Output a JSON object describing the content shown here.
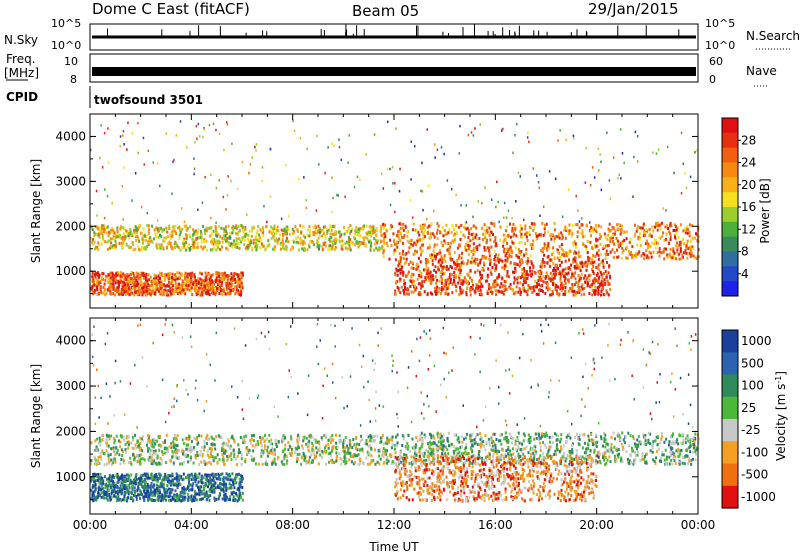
{
  "header": {
    "title": "Dome C East (fitACF)",
    "beam": "Beam 05",
    "date": "29/Jan/2015"
  },
  "top_panels": {
    "nsky_label": "N.Sky",
    "nsky_ticks": [
      "10^5",
      "10^0"
    ],
    "nsearch_label": "N.Search",
    "nsearch_ticks": [
      "10^5",
      "10^0"
    ],
    "freq_label_1": "Freq.",
    "freq_label_2": "[MHz]",
    "freq_ticks": [
      "10",
      "8"
    ],
    "nave_label": "Nave",
    "nave_ticks": [
      "60",
      "0"
    ],
    "cpid_label": "CPID",
    "cpid_value": "twofsound 3501"
  },
  "chart_data": [
    {
      "type": "heatmap",
      "name": "power",
      "ylabel": "Slant Range [km]",
      "ylim": [
        180,
        4500
      ],
      "yticks": [
        "1000",
        "2000",
        "3000",
        "4000"
      ],
      "xlim_hours": [
        0,
        24
      ],
      "colorbar": {
        "label": "Power [dB]",
        "ticks": [
          "4",
          "8",
          "12",
          "16",
          "20",
          "24",
          "28"
        ],
        "colors": [
          "#1f22e6",
          "#2348c8",
          "#2f6f9f",
          "#3a8a5c",
          "#4cb03a",
          "#9bcf2c",
          "#f5e020",
          "#f7b018",
          "#f58a0f",
          "#f06010",
          "#e83010",
          "#e01010"
        ]
      },
      "bands": [
        {
          "t0": 0.0,
          "t1": 11.5,
          "r0": 1500,
          "r1": 2050,
          "level": 0.55
        },
        {
          "t0": 11.5,
          "t1": 24.0,
          "r0": 1300,
          "r1": 2100,
          "level": 0.75
        },
        {
          "t0": 0.0,
          "t1": 6.0,
          "r0": 500,
          "r1": 1000,
          "level": 0.8
        },
        {
          "t0": 12.0,
          "t1": 20.5,
          "r0": 500,
          "r1": 1300,
          "level": 0.85
        }
      ]
    },
    {
      "type": "heatmap",
      "name": "velocity",
      "ylabel": "Slant Range [km]",
      "xlabel": "Time UT",
      "ylim": [
        180,
        4500
      ],
      "yticks": [
        "1000",
        "2000",
        "3000",
        "4000"
      ],
      "xticks": [
        "00:00",
        "04:00",
        "08:00",
        "12:00",
        "16:00",
        "20:00",
        "00:00"
      ],
      "xlim_hours": [
        0,
        24
      ],
      "colorbar": {
        "label": "Velocity [m s",
        "label_sup": "-1",
        "label_end": "]",
        "ticks": [
          "1000",
          "500",
          "100",
          "25",
          "-25",
          "-100",
          "-500",
          "-1000"
        ],
        "colors": [
          "#1a3f9c",
          "#2b63b0",
          "#2f8a5a",
          "#4cb83a",
          "#c8c8c8",
          "#f5a020",
          "#f07010",
          "#e01010"
        ]
      },
      "bands": [
        {
          "t0": 0.0,
          "t1": 12.0,
          "r0": 1300,
          "r1": 1950,
          "level": 0.5
        },
        {
          "t0": 12.0,
          "t1": 24.0,
          "r0": 1300,
          "r1": 2000,
          "level": 0.45
        },
        {
          "t0": 0.0,
          "t1": 6.0,
          "r0": 500,
          "r1": 1100,
          "level": 0.2
        },
        {
          "t0": 12.0,
          "t1": 20.0,
          "r0": 500,
          "r1": 1500,
          "level": 0.75
        }
      ]
    }
  ]
}
